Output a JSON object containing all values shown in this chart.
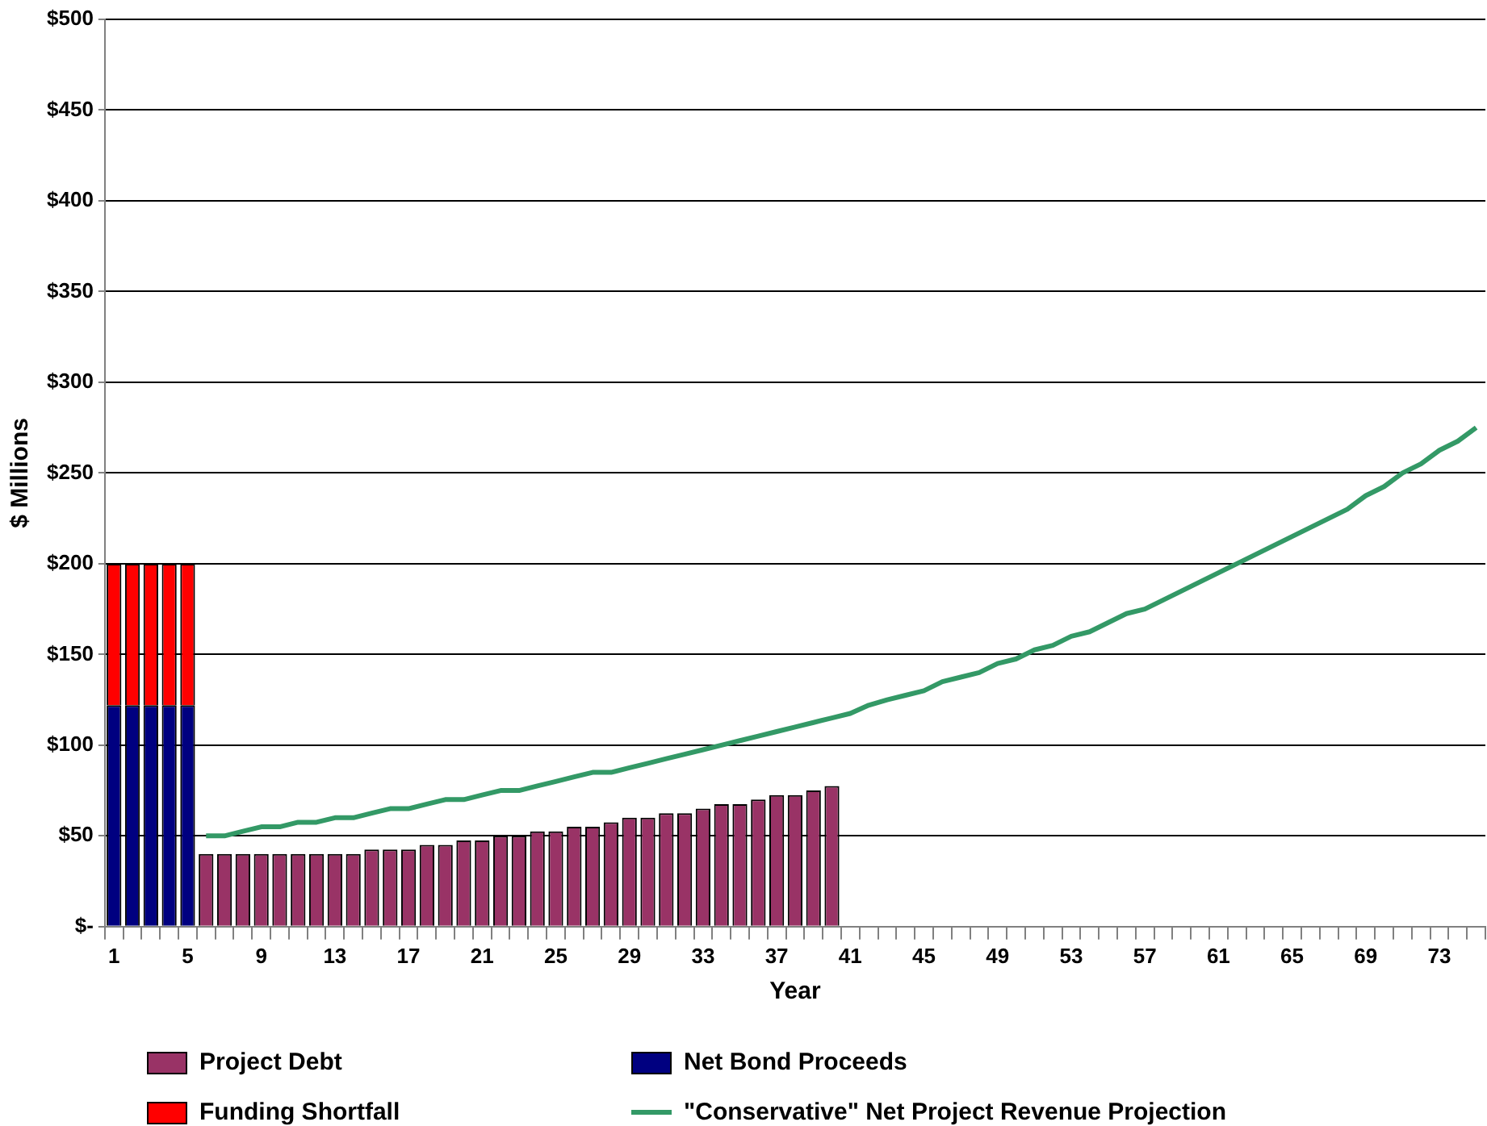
{
  "chart_data": {
    "type": "bar",
    "xlabel": "Year",
    "ylabel": "$ Millions",
    "categories": [
      "1",
      null,
      null,
      null,
      "5",
      null,
      null,
      null,
      "9",
      null,
      null,
      null,
      "13",
      null,
      null,
      null,
      "17",
      null,
      null,
      null,
      "21",
      null,
      null,
      null,
      "25",
      null,
      null,
      null,
      "29",
      null,
      null,
      null,
      "33",
      null,
      null,
      null,
      "37",
      null,
      null,
      null,
      "41",
      null,
      null,
      null,
      "45",
      null,
      null,
      null,
      "49",
      null,
      null,
      null,
      "53",
      null,
      null,
      null,
      "57",
      null,
      null,
      null,
      "61",
      null,
      null,
      null,
      "65",
      null,
      null,
      null,
      "69",
      null,
      null,
      null,
      "73",
      null,
      null
    ],
    "stacked": true,
    "grid": "y",
    "legend": "bottom",
    "marker": "none",
    "ylim": [
      0,
      500
    ],
    "yticks": [
      {
        "value": 0,
        "label": "$-"
      },
      {
        "value": 50,
        "label": "$50"
      },
      {
        "value": 100,
        "label": "$100"
      },
      {
        "value": 150,
        "label": "$150"
      },
      {
        "value": 200,
        "label": "$200"
      },
      {
        "value": 250,
        "label": "$250"
      },
      {
        "value": 300,
        "label": "$300"
      },
      {
        "value": 350,
        "label": "$350"
      },
      {
        "value": 400,
        "label": "$400"
      },
      {
        "value": 450,
        "label": "$450"
      },
      {
        "value": 500,
        "label": "$500"
      }
    ],
    "series": [
      {
        "name": "Project Debt",
        "color": "#993366",
        "values": [
          null,
          null,
          null,
          null,
          null,
          40,
          40,
          40,
          40,
          40,
          40,
          40,
          40,
          40,
          42.5,
          42.5,
          42.5,
          45,
          45,
          47.5,
          47.5,
          50,
          50,
          52.5,
          52.5,
          55,
          55,
          57.5,
          60,
          60,
          62.5,
          62.5,
          65,
          67.5,
          67.5,
          70,
          72.5,
          72.5,
          75,
          77.5,
          null,
          null,
          null,
          null,
          null,
          null,
          null,
          null,
          null,
          null,
          null,
          null,
          null,
          null,
          null,
          null,
          null,
          null,
          null,
          null,
          null,
          null,
          null,
          null,
          null,
          null,
          null,
          null,
          null,
          null,
          null,
          null,
          null,
          null,
          null
        ]
      },
      {
        "name": "Net Bond Proceeds",
        "color": "#000080",
        "values": [
          122,
          122,
          122,
          122,
          122,
          null,
          null,
          null,
          null,
          null,
          null,
          null,
          null,
          null,
          null,
          null,
          null,
          null,
          null,
          null,
          null,
          null,
          null,
          null,
          null,
          null,
          null,
          null,
          null,
          null,
          null,
          null,
          null,
          null,
          null,
          null,
          null,
          null,
          null,
          null,
          null,
          null,
          null,
          null,
          null,
          null,
          null,
          null,
          null,
          null,
          null,
          null,
          null,
          null,
          null,
          null,
          null,
          null,
          null,
          null,
          null,
          null,
          null,
          null,
          null,
          null,
          null,
          null,
          null,
          null,
          null,
          null,
          null,
          null,
          null
        ]
      },
      {
        "name": "Funding Shortfall",
        "color": "#ff0000",
        "values": [
          78,
          78,
          78,
          78,
          78,
          null,
          null,
          null,
          null,
          null,
          null,
          null,
          null,
          null,
          null,
          null,
          null,
          null,
          null,
          null,
          null,
          null,
          null,
          null,
          null,
          null,
          null,
          null,
          null,
          null,
          null,
          null,
          null,
          null,
          null,
          null,
          null,
          null,
          null,
          null,
          null,
          null,
          null,
          null,
          null,
          null,
          null,
          null,
          null,
          null,
          null,
          null,
          null,
          null,
          null,
          null,
          null,
          null,
          null,
          null,
          null,
          null,
          null,
          null,
          null,
          null,
          null,
          null,
          null,
          null,
          null,
          null,
          null,
          null,
          null
        ]
      },
      {
        "name": "\"Conservative\" Net Project Revenue Projection",
        "type": "line",
        "color": "#339966",
        "values": [
          null,
          null,
          null,
          null,
          null,
          50,
          50,
          52.5,
          55,
          55,
          57.5,
          57.5,
          60,
          60,
          62.5,
          65,
          65,
          67.5,
          70,
          70,
          72.5,
          75,
          75,
          77.5,
          80,
          82.5,
          85,
          85,
          87.5,
          90,
          92.5,
          95,
          97.5,
          100,
          102.5,
          105,
          107.5,
          110,
          112.5,
          115,
          117.5,
          122,
          125,
          127.5,
          130,
          135,
          137.5,
          140,
          145,
          147.5,
          152.5,
          155,
          160,
          162.5,
          167.5,
          172.5,
          175,
          180,
          185,
          190,
          195,
          200,
          205,
          210,
          215,
          220,
          225,
          230,
          237.5,
          242.5,
          250,
          255,
          262.5,
          267.5,
          275
        ]
      }
    ]
  }
}
